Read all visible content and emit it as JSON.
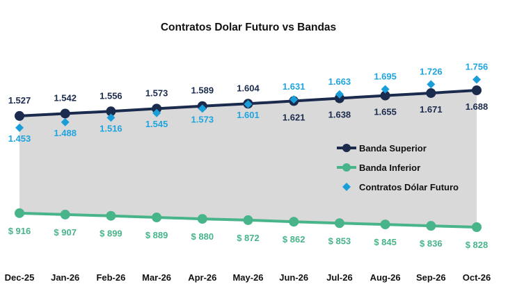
{
  "chart_data": {
    "type": "line",
    "title": "Contratos Dolar Futuro vs Bandas",
    "categories": [
      "Dec-25",
      "Jan-26",
      "Feb-26",
      "Mar-26",
      "Apr-26",
      "May-26",
      "Jun-26",
      "Jul-26",
      "Aug-26",
      "Sep-26",
      "Oct-26"
    ],
    "ylim": [
      800,
      1800
    ],
    "grid": false,
    "legend": "right",
    "series": [
      {
        "name": "Banda Superior",
        "color": "#1b2b4d",
        "marker": "circle",
        "values": [
          1527,
          1542,
          1556,
          1573,
          1589,
          1604,
          1621,
          1638,
          1655,
          1671,
          1688
        ],
        "labels": [
          "1.527",
          "1.542",
          "1.556",
          "1.573",
          "1.589",
          "1.604",
          "1.621",
          "1.638",
          "1.655",
          "1.671",
          "1.688"
        ]
      },
      {
        "name": "Banda Inferior",
        "color": "#48b48a",
        "marker": "circle",
        "values": [
          916,
          907,
          899,
          889,
          880,
          872,
          862,
          853,
          845,
          836,
          828
        ],
        "labels": [
          "$ 916",
          "$ 907",
          "$ 899",
          "$ 889",
          "$ 880",
          "$ 872",
          "$ 862",
          "$ 853",
          "$ 845",
          "$ 836",
          "$ 828"
        ]
      },
      {
        "name": "Contratos Dólar Futuro",
        "color": "#1a9ed9",
        "marker": "diamond",
        "values": [
          1453,
          1488,
          1516,
          1545,
          1573,
          1601,
          1631,
          1663,
          1695,
          1726,
          1756
        ],
        "labels": [
          "1.453",
          "1.488",
          "1.516",
          "1.545",
          "1.573",
          "1.601",
          "1.631",
          "1.663",
          "1.695",
          "1.726",
          "1.756"
        ]
      }
    ],
    "band_fill_color": "#d9d9d9"
  }
}
